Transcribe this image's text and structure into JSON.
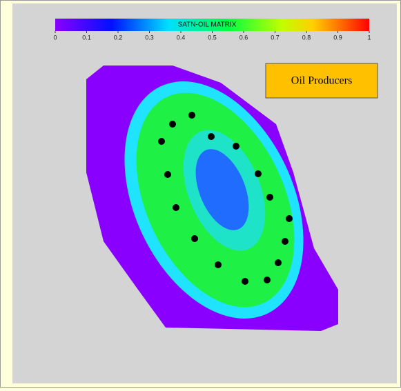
{
  "colorbar": {
    "title": "SATN-OIL MATRIX",
    "range": [
      0,
      1
    ],
    "ticks": [
      0,
      0.1,
      0.2,
      0.3,
      0.4,
      0.5,
      0.6,
      0.7,
      0.8,
      0.9,
      1
    ]
  },
  "legend": {
    "label": "Oil Producers"
  }
}
